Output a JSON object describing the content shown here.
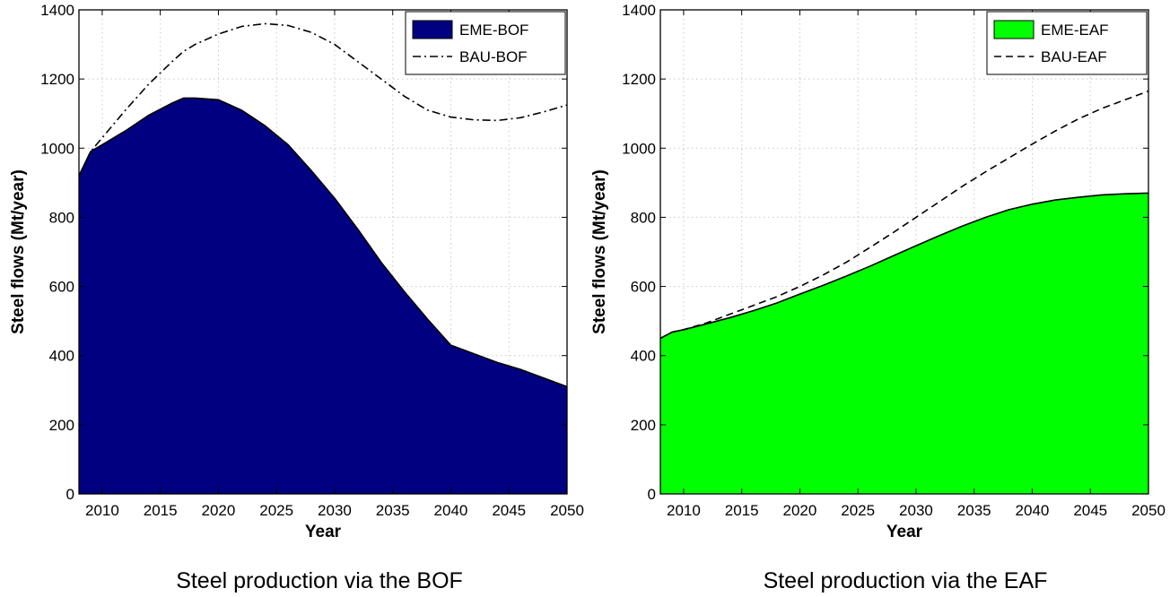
{
  "chart_data": [
    {
      "type": "area",
      "caption": "Steel production via the BOF",
      "xlabel": "Year",
      "ylabel": "Steel flows (Mt/year)",
      "xlim": [
        2008,
        2050
      ],
      "ylim": [
        0,
        1400
      ],
      "xticks": [
        2010,
        2015,
        2020,
        2025,
        2030,
        2035,
        2040,
        2045,
        2050
      ],
      "yticks": [
        0,
        200,
        400,
        600,
        800,
        1000,
        1200,
        1400
      ],
      "grid": true,
      "legend_position": "top-right",
      "x": [
        2008,
        2009,
        2010,
        2012,
        2014,
        2016,
        2017,
        2018,
        2020,
        2022,
        2024,
        2026,
        2028,
        2030,
        2032,
        2034,
        2036,
        2038,
        2040,
        2042,
        2044,
        2046,
        2048,
        2050
      ],
      "series": [
        {
          "name": "EME-BOF",
          "style": "area",
          "color": "#000080",
          "values": [
            920,
            990,
            1010,
            1050,
            1095,
            1130,
            1145,
            1145,
            1140,
            1110,
            1065,
            1010,
            935,
            855,
            765,
            670,
            585,
            505,
            430,
            405,
            380,
            360,
            335,
            310
          ]
        },
        {
          "name": "BAU-BOF",
          "style": "dash-dot",
          "color": "#000000",
          "values": [
            920,
            990,
            1030,
            1110,
            1185,
            1250,
            1280,
            1300,
            1330,
            1352,
            1360,
            1355,
            1335,
            1300,
            1250,
            1200,
            1150,
            1110,
            1090,
            1082,
            1080,
            1088,
            1105,
            1125
          ]
        }
      ]
    },
    {
      "type": "area",
      "caption": "Steel production via the EAF",
      "xlabel": "Year",
      "ylabel": "Steel flows (Mt/year)",
      "xlim": [
        2008,
        2050
      ],
      "ylim": [
        0,
        1400
      ],
      "xticks": [
        2010,
        2015,
        2020,
        2025,
        2030,
        2035,
        2040,
        2045,
        2050
      ],
      "yticks": [
        0,
        200,
        400,
        600,
        800,
        1000,
        1200,
        1400
      ],
      "grid": true,
      "legend_position": "top-right",
      "x": [
        2008,
        2009,
        2010,
        2012,
        2014,
        2016,
        2018,
        2020,
        2022,
        2024,
        2026,
        2028,
        2030,
        2032,
        2034,
        2036,
        2038,
        2040,
        2042,
        2044,
        2046,
        2048,
        2050
      ],
      "series": [
        {
          "name": "EME-EAF",
          "style": "area",
          "color": "#00ff00",
          "values": [
            450,
            468,
            475,
            492,
            510,
            530,
            552,
            578,
            603,
            630,
            658,
            688,
            718,
            747,
            775,
            800,
            822,
            838,
            850,
            858,
            865,
            868,
            870
          ]
        },
        {
          "name": "BAU-EAF",
          "style": "dashed",
          "color": "#000000",
          "values": [
            450,
            468,
            475,
            495,
            520,
            545,
            570,
            600,
            633,
            670,
            712,
            755,
            800,
            845,
            890,
            932,
            972,
            1012,
            1050,
            1085,
            1115,
            1140,
            1165
          ]
        }
      ]
    }
  ]
}
